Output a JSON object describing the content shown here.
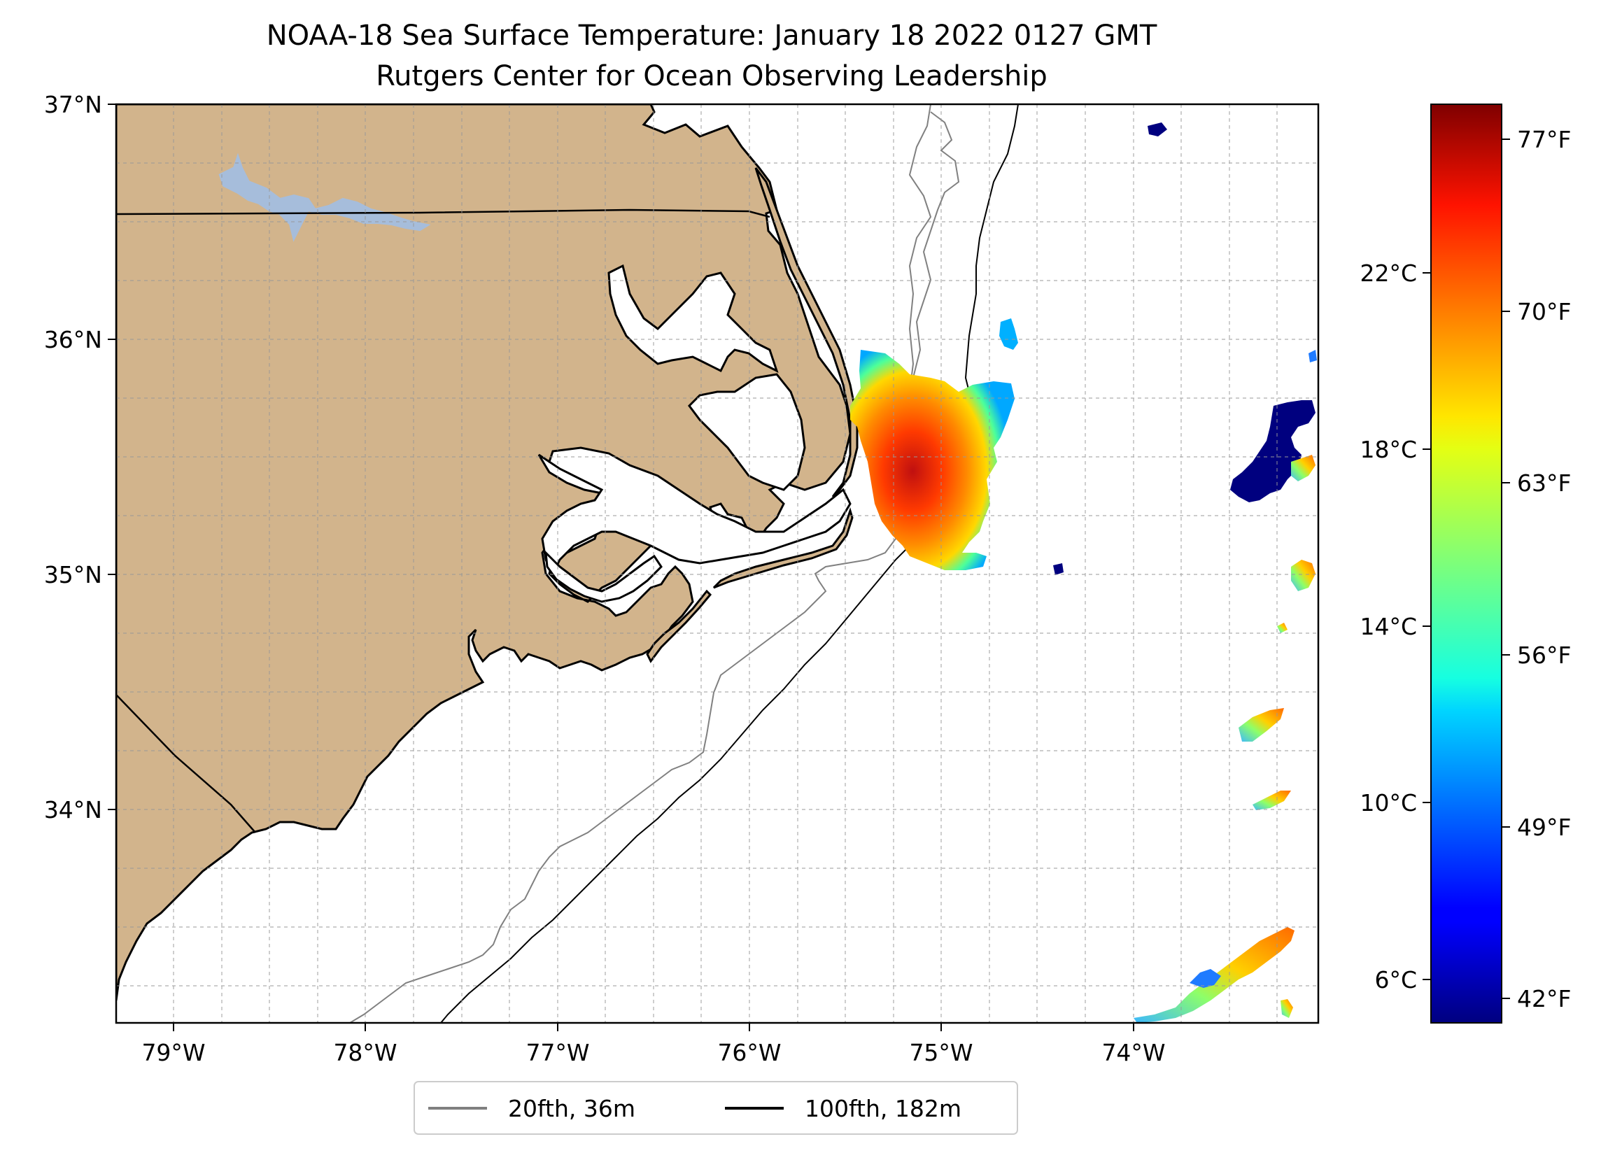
{
  "title": {
    "line1": "NOAA-18 Sea Surface Temperature: January 18 2022 0127 GMT",
    "line2": "Rutgers Center for Ocean Observing Leadership"
  },
  "map": {
    "lon_range": [
      -79.3,
      -73.1
    ],
    "lat_range": [
      33.1,
      37.0
    ],
    "lat_ticks": [
      {
        "value": 37,
        "label": "37°N"
      },
      {
        "value": 36,
        "label": "36°N"
      },
      {
        "value": 35,
        "label": "35°N"
      },
      {
        "value": 34,
        "label": "34°N"
      }
    ],
    "lon_ticks": [
      {
        "value": -79,
        "label": "79°W"
      },
      {
        "value": -78,
        "label": "78°W"
      },
      {
        "value": -77,
        "label": "77°W"
      },
      {
        "value": -76,
        "label": "76°W"
      },
      {
        "value": -75,
        "label": "75°W"
      },
      {
        "value": -74,
        "label": "74°W"
      }
    ],
    "gridlines": "dashed",
    "land_color": "#d2b48c",
    "water_color": "#ffffff",
    "lake_color": "#a6bddb"
  },
  "legend": {
    "placement": "bottom-center",
    "entries": [
      {
        "label": "20fth, 36m",
        "color": "#808080"
      },
      {
        "label": "100fth, 182m",
        "color": "#000000"
      }
    ]
  },
  "colorbar": {
    "colormap": "jet",
    "celsius_ticks": [
      {
        "value": 22,
        "label": "22°C"
      },
      {
        "value": 18,
        "label": "18°C"
      },
      {
        "value": 14,
        "label": "14°C"
      },
      {
        "value": 10,
        "label": "10°C"
      },
      {
        "value": 6,
        "label": "6°C"
      }
    ],
    "fahrenheit_ticks": [
      {
        "value": 77,
        "label": "77°F"
      },
      {
        "value": 70,
        "label": "70°F"
      },
      {
        "value": 63,
        "label": "63°F"
      },
      {
        "value": 56,
        "label": "56°F"
      },
      {
        "value": 49,
        "label": "49°F"
      },
      {
        "value": 42,
        "label": "42°F"
      }
    ],
    "range_celsius": [
      5.2,
      26.0
    ]
  }
}
